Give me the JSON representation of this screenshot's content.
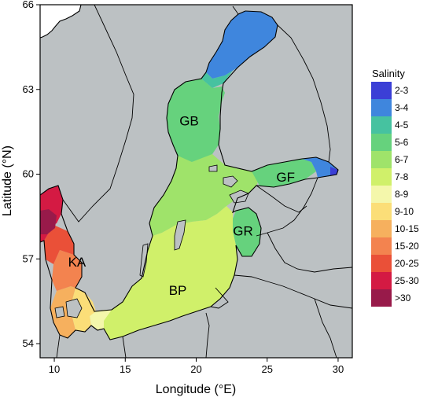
{
  "map": {
    "x_axis_title": "Longitude (°E)",
    "y_axis_title": "Latitude (°N)",
    "x_ticks": [
      "10",
      "15",
      "20",
      "25",
      "30"
    ],
    "y_ticks": [
      "54",
      "57",
      "60",
      "63",
      "66"
    ],
    "x_range": [
      9,
      31
    ],
    "y_range": [
      53.5,
      66
    ],
    "land_color": "#bcc1c3",
    "regions": [
      {
        "code": "GB",
        "lon": 19.5,
        "lat": 61.9,
        "salinity": "5-6"
      },
      {
        "code": "GF",
        "lon": 26.3,
        "lat": 59.9,
        "salinity": "5-6"
      },
      {
        "code": "GR",
        "lon": 23.3,
        "lat": 58.0,
        "salinity": "5-6"
      },
      {
        "code": "BP",
        "lon": 18.7,
        "lat": 55.9,
        "salinity": "7-8"
      },
      {
        "code": "KA",
        "lon": 11.6,
        "lat": 56.9,
        "salinity": "20-25"
      }
    ]
  },
  "legend": {
    "title": "Salinity",
    "entries": [
      {
        "label": "2-3",
        "color": "#3b3fd6"
      },
      {
        "label": "3-4",
        "color": "#3f86dd"
      },
      {
        "label": "4-5",
        "color": "#46c2a0"
      },
      {
        "label": "5-6",
        "color": "#66d27d"
      },
      {
        "label": "6-7",
        "color": "#9fe36a"
      },
      {
        "label": "7-8",
        "color": "#d0f06a"
      },
      {
        "label": "8-9",
        "color": "#f4f7ab"
      },
      {
        "label": "9-10",
        "color": "#fbde78"
      },
      {
        "label": "10-15",
        "color": "#f6b05e"
      },
      {
        "label": "15-20",
        "color": "#f3834f"
      },
      {
        "label": "20-25",
        "color": "#ea5038"
      },
      {
        "label": "25-30",
        "color": "#d41a43"
      },
      {
        "label": ">30",
        "color": "#981a4a"
      }
    ]
  }
}
